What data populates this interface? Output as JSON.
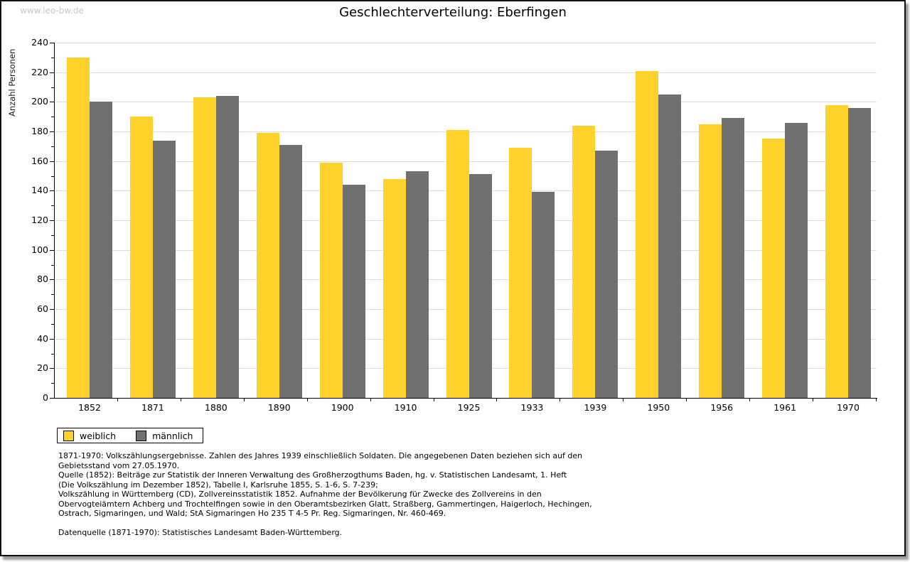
{
  "watermark": "www.leo-bw.de",
  "title": "Geschlechterverteilung: Eberfingen",
  "chart_data": {
    "type": "bar",
    "title": "Geschlechterverteilung: Eberfingen",
    "xlabel": "",
    "ylabel": "Anzahl Personen",
    "ylim": [
      0,
      240
    ],
    "y_major_step": 20,
    "y_minor_step": 10,
    "grid": "horizontal-major",
    "legend_position": "bottom-left",
    "categories": [
      "1852",
      "1871",
      "1880",
      "1890",
      "1900",
      "1910",
      "1925",
      "1933",
      "1939",
      "1950",
      "1956",
      "1961",
      "1970"
    ],
    "series": [
      {
        "name": "weiblich",
        "color": "#FDD32B",
        "values": [
          230,
          190,
          203,
          179,
          159,
          148,
          181,
          169,
          184,
          221,
          185,
          175,
          198
        ]
      },
      {
        "name": "männlich",
        "color": "#707070",
        "values": [
          200,
          174,
          204,
          171,
          144,
          153,
          151,
          139,
          167,
          205,
          189,
          186,
          196
        ]
      }
    ]
  },
  "colors": {
    "weiblich": "#FDD32B",
    "maennlich": "#707070",
    "gridline": "#dedede",
    "axis": "#000000",
    "watermark": "#c9c9c9"
  },
  "footer": {
    "lines": [
      "1871-1970: Volkszählungsergebnisse. Zahlen des Jahres 1939 einschließlich Soldaten. Die angegebenen Daten beziehen sich auf den",
      "Gebietsstand vom 27.05.1970.",
      "Quelle (1852): Beiträge zur Statistik der Inneren Verwaltung des Großherzogthums Baden, hg. v. Statistischen Landesamt, 1. Heft",
      "(Die Volkszählung im Dezember 1852), Tabelle I, Karlsruhe 1855, S. 1-6, S. 7-239;",
      "Volkszählung in Württemberg (CD), Zollvereinsstatistik 1852. Aufnahme der Bevölkerung für Zwecke des Zollvereins in den",
      "Obervogteiämtern Achberg und Trochtelfingen sowie in den Oberamtsbezirken Glatt, Straßberg, Gammertingen, Haigerloch, Hechingen,",
      "Ostrach, Sigmaringen, und Wald; StA Sigmaringen Ho 235 T 4-5 Pr. Reg. Sigmaringen, Nr. 460-469."
    ],
    "datenquelle": "Datenquelle (1871-1970): Statistisches Landesamt Baden-Württemberg."
  }
}
